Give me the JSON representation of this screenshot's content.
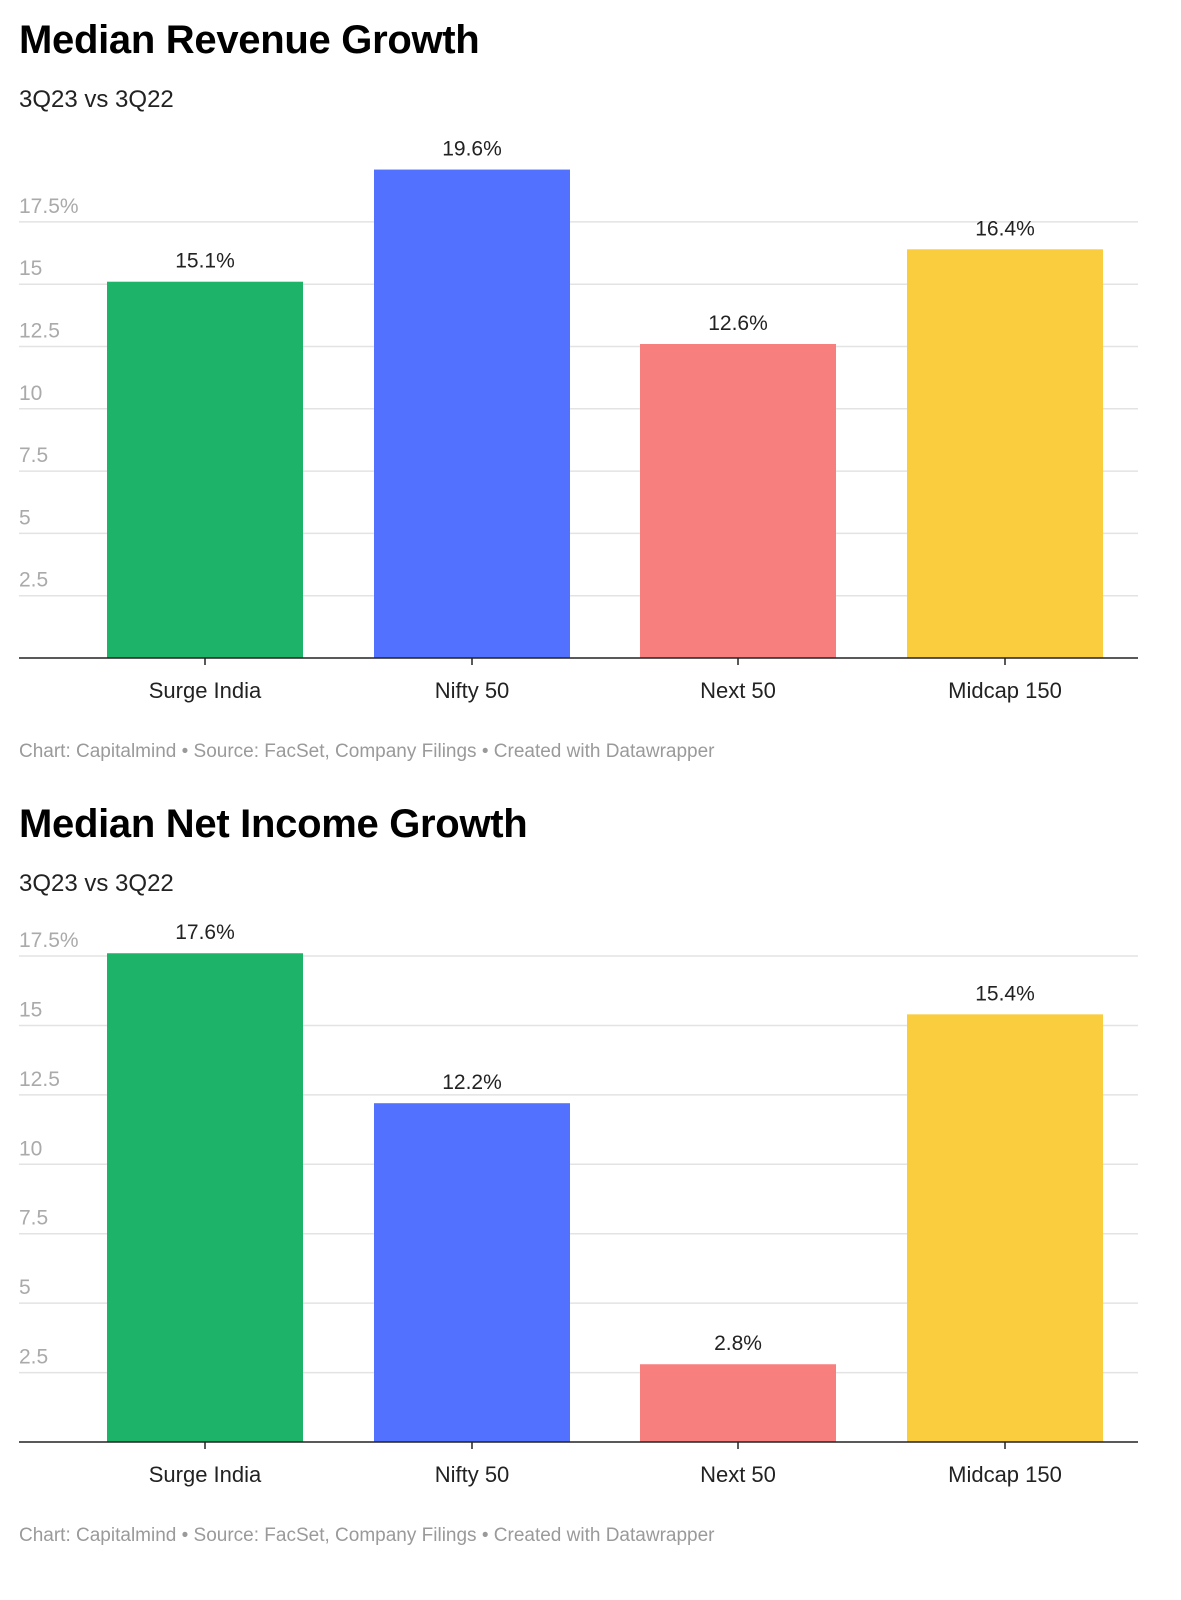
{
  "chart_data": [
    {
      "type": "bar",
      "title": "Median Revenue Growth",
      "subtitle": "3Q23 vs 3Q22",
      "categories": [
        "Surge India",
        "Nifty 50",
        "Next 50",
        "Midcap 150"
      ],
      "values": [
        15.1,
        19.6,
        12.6,
        16.4
      ],
      "value_labels": [
        "15.1%",
        "19.6%",
        "12.6%",
        "16.4%"
      ],
      "colors": [
        "#1db46a",
        "#5271ff",
        "#f77f7e",
        "#f9cd3e"
      ],
      "yticks": [
        2.5,
        5,
        7.5,
        10,
        12.5,
        15,
        17.5
      ],
      "ytick_labels": [
        "2.5",
        "5",
        "7.5",
        "10",
        "12.5",
        "15",
        "17.5%"
      ],
      "ylim": [
        0,
        19.6
      ],
      "grid": true,
      "footer": "Chart: Capitalmind • Source: FacSet, Company Filings • Created with Datawrapper"
    },
    {
      "type": "bar",
      "title": "Median Net Income Growth",
      "subtitle": "3Q23 vs 3Q22",
      "categories": [
        "Surge India",
        "Nifty 50",
        "Next 50",
        "Midcap 150"
      ],
      "values": [
        17.6,
        12.2,
        2.8,
        15.4
      ],
      "value_labels": [
        "17.6%",
        "12.2%",
        "2.8%",
        "15.4%"
      ],
      "colors": [
        "#1db46a",
        "#5271ff",
        "#f77f7e",
        "#f9cd3e"
      ],
      "yticks": [
        2.5,
        5,
        7.5,
        10,
        12.5,
        15,
        17.5
      ],
      "ytick_labels": [
        "2.5",
        "5",
        "7.5",
        "10",
        "12.5",
        "15",
        "17.5%"
      ],
      "ylim": [
        0,
        17.6
      ],
      "grid": true,
      "footer": "Chart: Capitalmind • Source: FacSet, Company Filings • Created with Datawrapper"
    }
  ]
}
